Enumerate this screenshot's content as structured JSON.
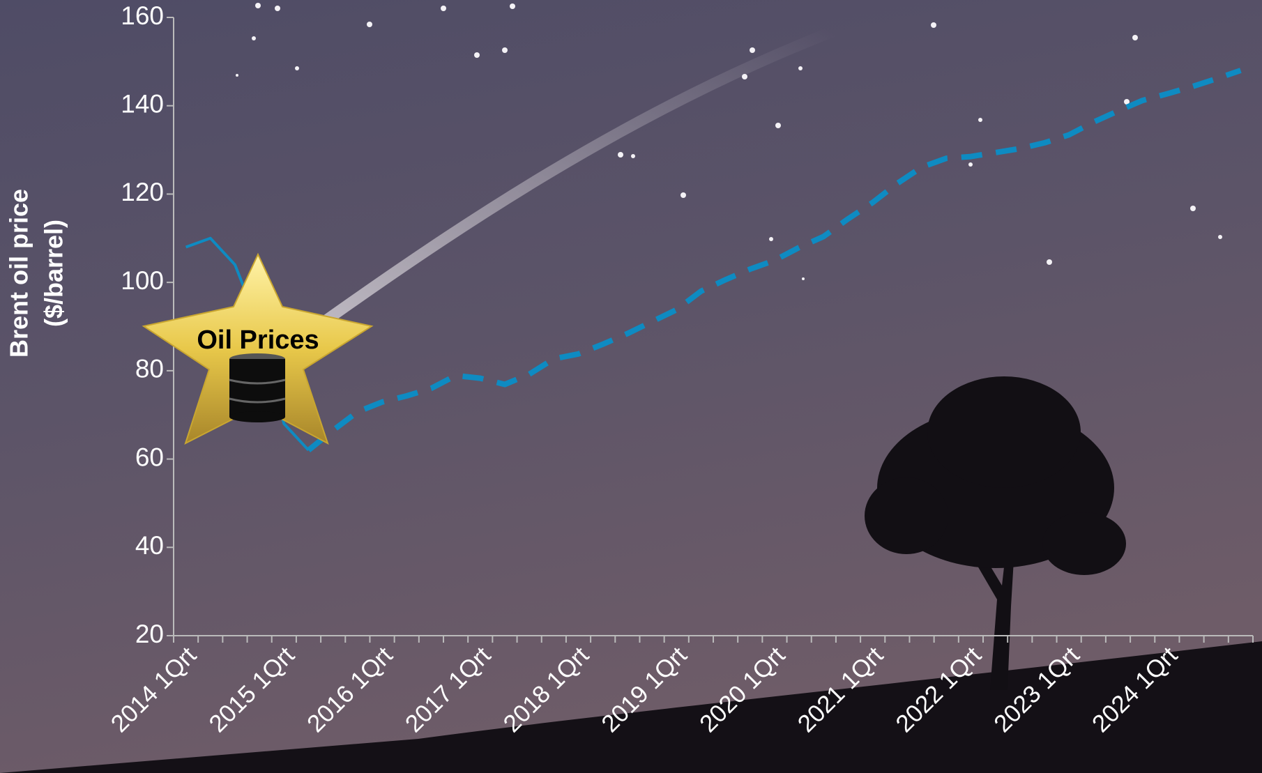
{
  "chart_data": {
    "type": "line",
    "ylabel": [
      "Brent oil price",
      "($/barrel)"
    ],
    "annotation": "Oil Prices",
    "categories": [
      "2014 1Qrt",
      null,
      null,
      null,
      "2015 1Qrt",
      null,
      null,
      null,
      "2016 1Qrt",
      null,
      null,
      null,
      "2017 1Qrt",
      null,
      null,
      null,
      "2018 1Qrt",
      null,
      null,
      null,
      "2019 1Qrt",
      null,
      null,
      null,
      "2020 1Qrt",
      null,
      null,
      null,
      "2021 1Qrt",
      null,
      null,
      null,
      "2022 1Qrt",
      null,
      null,
      null,
      "2023 1Qrt",
      null,
      null,
      null,
      "2024 1Qrt",
      null,
      null,
      null
    ],
    "series": [
      {
        "color": "#0e8bc2",
        "style": "solid",
        "values": [
          108,
          110,
          104,
          90,
          68,
          62,
          null,
          null,
          null,
          null,
          null,
          null,
          null,
          null,
          null,
          null,
          null,
          null,
          null,
          null,
          null,
          null,
          null,
          null,
          null,
          null,
          null,
          null,
          null,
          null,
          null,
          null,
          null,
          null,
          null,
          null,
          null,
          null,
          null,
          null,
          null,
          null,
          null,
          null
        ]
      },
      {
        "color": "#0e8bc2",
        "style": "dashed",
        "values": [
          null,
          null,
          null,
          null,
          null,
          62,
          66.5,
          70.7,
          72.9,
          74.3,
          76,
          78.9,
          78.3,
          76.9,
          79.2,
          82.7,
          83.8,
          86,
          88.4,
          91.1,
          93.8,
          98,
          100.6,
          103,
          105,
          107.9,
          110.4,
          114.4,
          118.1,
          122.4,
          126.1,
          128.1,
          128.5,
          129.4,
          130.3,
          131.6,
          133.4,
          136.3,
          138.8,
          141.2,
          142.7,
          144.3,
          146.1,
          148
        ]
      }
    ],
    "ylim": [
      20,
      160
    ],
    "yticks": [
      20,
      40,
      60,
      80,
      100,
      120,
      140,
      160
    ]
  }
}
